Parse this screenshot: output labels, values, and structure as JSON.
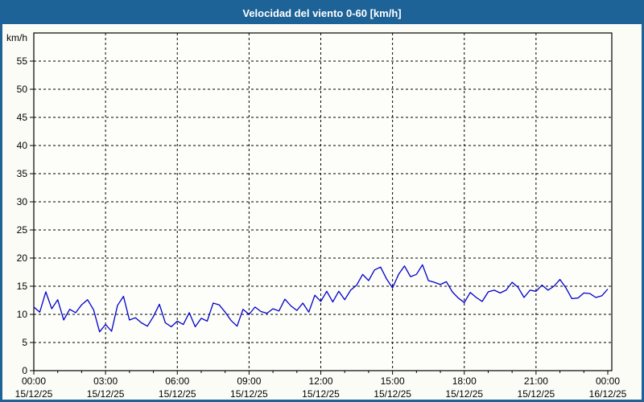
{
  "window": {
    "title": "Velocidad del viento 0-60 [km/h]"
  },
  "colors": {
    "titlebar_bg": "#1d6398",
    "frame_border": "#1d6398",
    "background": "#fcfcf7",
    "plot_background": "#fdfdf9",
    "grid": "#000000",
    "axis": "#000000",
    "text": "#000000",
    "line": "#0000cc"
  },
  "chart_data": {
    "type": "line",
    "title": "Velocidad del viento 0-60 [km/h]",
    "ylabel": "km/h",
    "ylim": [
      0,
      60
    ],
    "yticks": [
      0,
      5,
      10,
      15,
      20,
      25,
      30,
      35,
      40,
      45,
      50,
      55
    ],
    "grid": "dashed",
    "legend_position": "none",
    "x_hours_range": [
      0,
      24
    ],
    "x_minor_step_hours": 1,
    "x_major_ticks": [
      {
        "hour": 0,
        "time": "00:00",
        "date": "15/12/25"
      },
      {
        "hour": 3,
        "time": "03:00",
        "date": "15/12/25"
      },
      {
        "hour": 6,
        "time": "06:00",
        "date": "15/12/25"
      },
      {
        "hour": 9,
        "time": "09:00",
        "date": "15/12/25"
      },
      {
        "hour": 12,
        "time": "12:00",
        "date": "15/12/25"
      },
      {
        "hour": 15,
        "time": "15:00",
        "date": "15/12/25"
      },
      {
        "hour": 18,
        "time": "18:00",
        "date": "15/12/25"
      },
      {
        "hour": 21,
        "time": "21:00",
        "date": "15/12/25"
      },
      {
        "hour": 24,
        "time": "00:00",
        "date": "16/12/25"
      }
    ],
    "series": [
      {
        "name": "Velocidad del viento",
        "color": "#0000cc",
        "x_start_hour": 0,
        "x_step_hours": 0.25,
        "values": [
          11.3,
          10.4,
          14.0,
          11.0,
          12.6,
          9.0,
          10.9,
          10.3,
          11.7,
          12.6,
          10.8,
          6.9,
          8.2,
          7.0,
          11.6,
          13.2,
          9.0,
          9.4,
          8.5,
          7.9,
          9.6,
          11.8,
          8.5,
          7.8,
          8.8,
          8.2,
          10.3,
          7.8,
          9.3,
          8.8,
          12.0,
          11.7,
          10.4,
          8.9,
          7.9,
          10.9,
          10.0,
          11.3,
          10.5,
          10.2,
          11.0,
          10.6,
          12.7,
          11.5,
          10.7,
          12.0,
          10.4,
          13.4,
          12.3,
          14.1,
          12.2,
          14.1,
          12.6,
          14.3,
          15.2,
          17.1,
          16.0,
          17.9,
          18.4,
          16.3,
          14.7,
          17.1,
          18.6,
          16.7,
          17.1,
          18.8,
          16.0,
          15.7,
          15.3,
          15.8,
          14.0,
          12.9,
          12.1,
          13.9,
          13.0,
          12.3,
          14.0,
          14.3,
          13.8,
          14.3,
          15.7,
          14.8,
          13.0,
          14.3,
          14.1,
          15.2,
          14.3,
          15.0,
          16.2,
          14.7,
          12.8,
          12.9,
          13.8,
          13.7,
          13.0,
          13.3,
          14.5
        ]
      }
    ]
  }
}
